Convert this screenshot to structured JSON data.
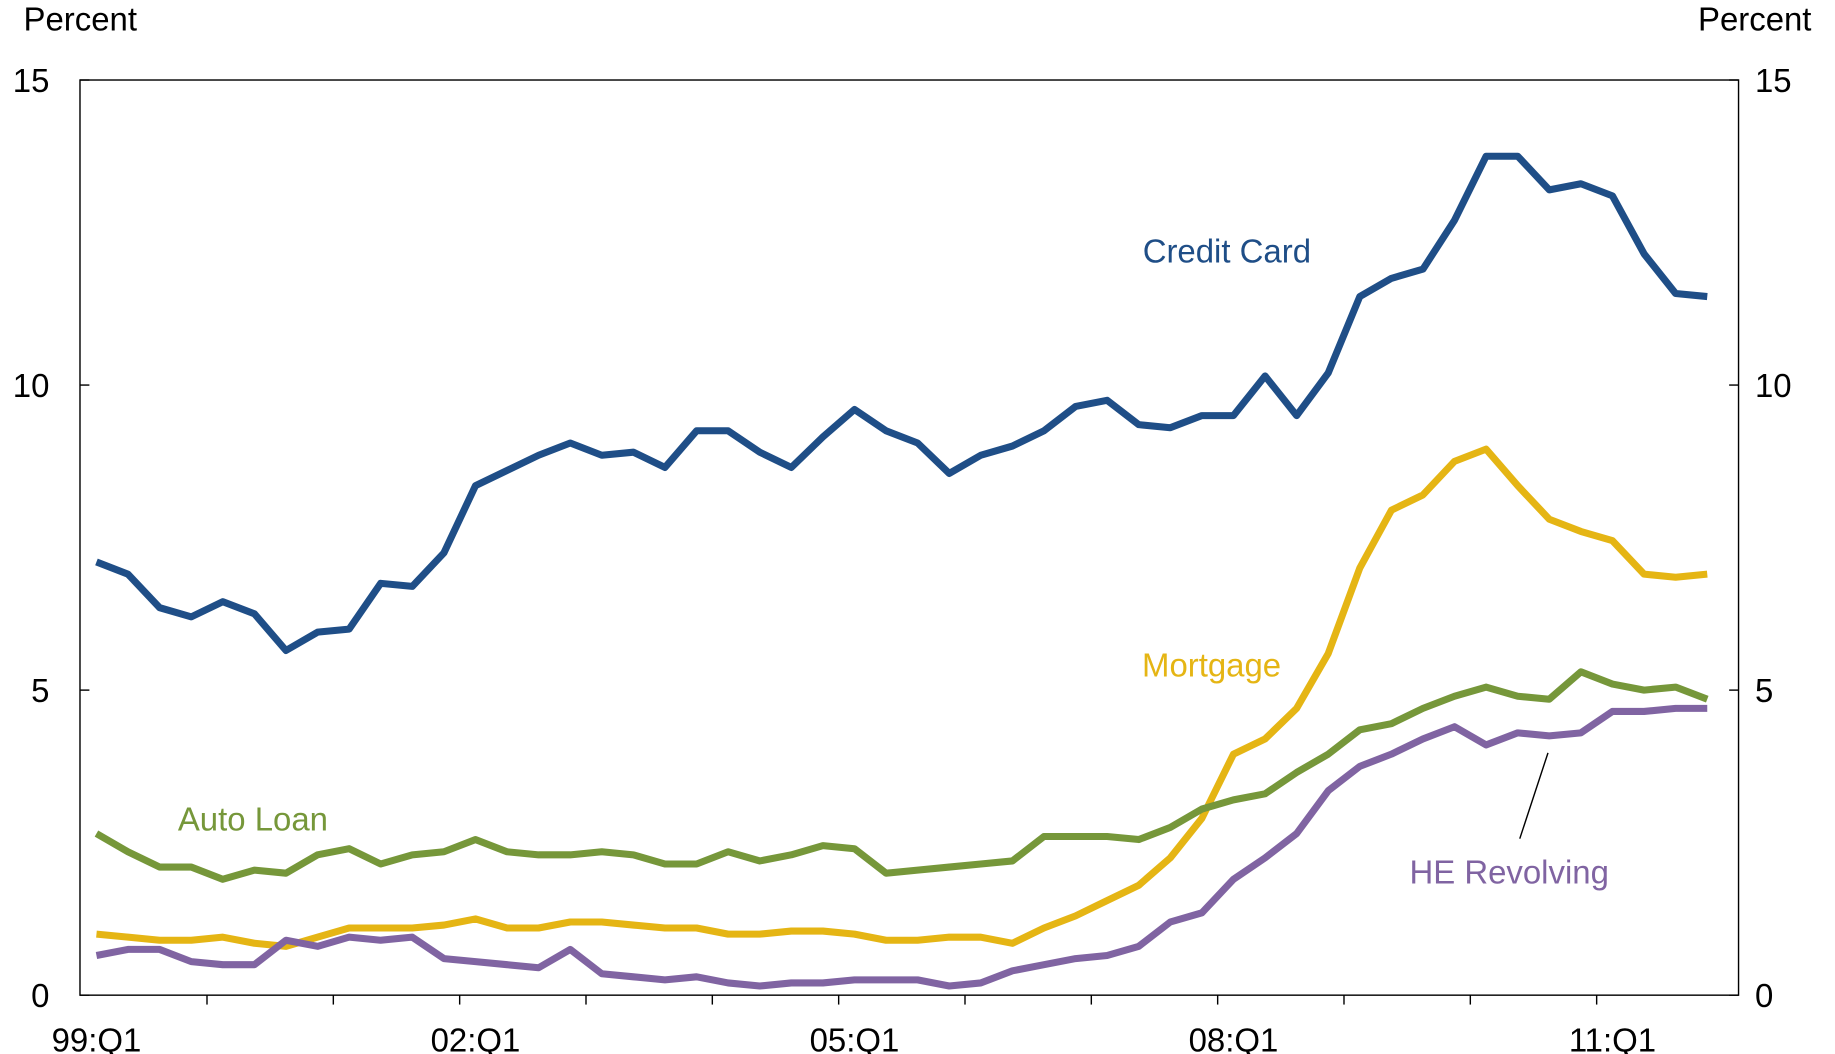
{
  "chart_data": {
    "type": "line",
    "y_label": "Percent",
    "y2_label": "Percent",
    "categories": [
      "99:Q1",
      null,
      null,
      null,
      null,
      null,
      null,
      null,
      null,
      null,
      null,
      null,
      "02:Q1",
      null,
      null,
      null,
      null,
      null,
      null,
      null,
      null,
      null,
      null,
      null,
      "05:Q1",
      null,
      null,
      null,
      null,
      null,
      null,
      null,
      null,
      null,
      null,
      null,
      "08:Q1",
      null,
      null,
      null,
      null,
      null,
      null,
      null,
      null,
      null,
      null,
      null,
      "11:Q1",
      null,
      null,
      null
    ],
    "ylim": [
      0,
      15
    ],
    "yticks": [
      0,
      5,
      10,
      15
    ],
    "y2lim": [
      0,
      15
    ],
    "y2ticks": [
      0,
      5,
      10,
      15
    ],
    "series": [
      {
        "name": "Credit Card",
        "color": "#1f4e87",
        "values": [
          7.1,
          6.9,
          6.35,
          6.2,
          6.45,
          6.25,
          5.65,
          5.95,
          6.0,
          6.75,
          6.7,
          7.25,
          8.35,
          8.6,
          8.85,
          9.05,
          8.85,
          8.9,
          8.65,
          9.25,
          9.25,
          8.9,
          8.65,
          9.15,
          9.6,
          9.25,
          9.05,
          8.55,
          8.85,
          9.0,
          9.25,
          9.65,
          9.75,
          9.35,
          9.3,
          9.5,
          9.5,
          10.15,
          9.5,
          10.2,
          11.45,
          11.75,
          11.9,
          12.7,
          13.75,
          13.75,
          13.2,
          13.3,
          13.1,
          12.15,
          11.5,
          11.45
        ]
      },
      {
        "name": "Mortgage",
        "color": "#e5b514",
        "values": [
          1.0,
          0.95,
          0.9,
          0.9,
          0.95,
          0.85,
          0.8,
          0.95,
          1.1,
          1.1,
          1.1,
          1.15,
          1.25,
          1.1,
          1.1,
          1.2,
          1.2,
          1.15,
          1.1,
          1.1,
          1.0,
          1.0,
          1.05,
          1.05,
          1.0,
          0.9,
          0.9,
          0.95,
          0.95,
          0.85,
          1.1,
          1.3,
          1.55,
          1.8,
          2.25,
          2.9,
          3.95,
          4.2,
          4.7,
          5.6,
          7.0,
          7.95,
          8.2,
          8.75,
          8.95,
          8.35,
          7.8,
          7.6,
          7.45,
          6.9,
          6.85,
          6.9
        ]
      },
      {
        "name": "Auto Loan",
        "color": "#76973a",
        "values": [
          2.65,
          2.35,
          2.1,
          2.1,
          1.9,
          2.05,
          2.0,
          2.3,
          2.4,
          2.15,
          2.3,
          2.35,
          2.55,
          2.35,
          2.3,
          2.3,
          2.35,
          2.3,
          2.15,
          2.15,
          2.35,
          2.2,
          2.3,
          2.45,
          2.4,
          2.0,
          2.05,
          2.1,
          2.15,
          2.2,
          2.6,
          2.6,
          2.6,
          2.55,
          2.75,
          3.05,
          3.2,
          3.3,
          3.65,
          3.95,
          4.35,
          4.45,
          4.7,
          4.9,
          5.05,
          4.9,
          4.85,
          5.3,
          5.1,
          5.0,
          5.05,
          4.85
        ]
      },
      {
        "name": "HE Revolving",
        "color": "#8064a2",
        "values": [
          0.65,
          0.75,
          0.75,
          0.55,
          0.5,
          0.5,
          0.9,
          0.8,
          0.95,
          0.9,
          0.95,
          0.6,
          0.55,
          0.5,
          0.45,
          0.75,
          0.35,
          0.3,
          0.25,
          0.3,
          0.2,
          0.15,
          0.2,
          0.2,
          0.25,
          0.25,
          0.25,
          0.15,
          0.2,
          0.4,
          0.5,
          0.6,
          0.65,
          0.8,
          1.2,
          1.35,
          1.9,
          2.25,
          2.65,
          3.35,
          3.75,
          3.95,
          4.2,
          4.4,
          4.1,
          4.3,
          4.25,
          4.3,
          4.65,
          4.65,
          4.7,
          4.7
        ]
      }
    ]
  }
}
